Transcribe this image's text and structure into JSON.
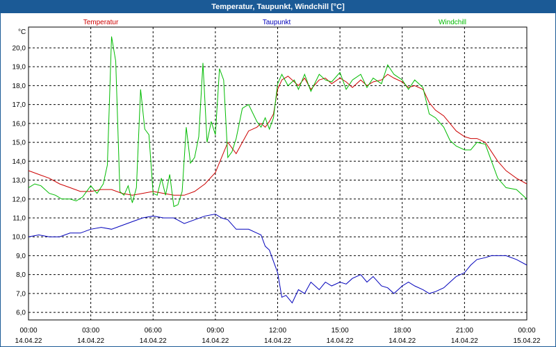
{
  "title": "Temperatur, Taupunkt, Windchill [°C]",
  "colors": {
    "temperatur": "#cc0000",
    "taupunkt": "#0000bb",
    "windchill": "#00bb00",
    "titlebar": "#1b5a96"
  },
  "chart_data": {
    "type": "line",
    "title": "Temperatur, Taupunkt, Windchill [°C]",
    "ylabel": "°C",
    "xlabel": "",
    "ylim": [
      5.6,
      21.1
    ],
    "xlim": [
      0,
      24
    ],
    "yticks": [
      6.0,
      7.0,
      8.0,
      9.0,
      10.0,
      11.0,
      12.0,
      13.0,
      14.0,
      15.0,
      16.0,
      17.0,
      18.0,
      19.0,
      20.0
    ],
    "ytick_labels": [
      "6,0",
      "7,0",
      "8,0",
      "9,0",
      "10,0",
      "11,0",
      "12,0",
      "13,0",
      "14,0",
      "15,0",
      "16,0",
      "17,0",
      "18,0",
      "19,0",
      "20,0"
    ],
    "xticks": [
      {
        "x": 0,
        "time": "00:00",
        "date": "14.04.22"
      },
      {
        "x": 3,
        "time": "03:00",
        "date": "14.04.22"
      },
      {
        "x": 6,
        "time": "06:00",
        "date": "14.04.22"
      },
      {
        "x": 9,
        "time": "09:00",
        "date": "14.04.22"
      },
      {
        "x": 12,
        "time": "12:00",
        "date": "14.04.22"
      },
      {
        "x": 15,
        "time": "15:00",
        "date": "14.04.22"
      },
      {
        "x": 18,
        "time": "18:00",
        "date": "14.04.22"
      },
      {
        "x": 21,
        "time": "21:00",
        "date": "14.04.22"
      },
      {
        "x": 24,
        "time": "00:00",
        "date": "15.04.22"
      }
    ],
    "grid": true,
    "legend_position": "top",
    "series": [
      {
        "name": "Temperatur",
        "key": "temperatur",
        "x": [
          0,
          0.5,
          1,
          1.5,
          2,
          2.5,
          3,
          3.5,
          4,
          4.5,
          5,
          5.5,
          6,
          6.5,
          7,
          7.5,
          8,
          8.5,
          9,
          9.3,
          9.6,
          10,
          10.3,
          10.6,
          11,
          11.2,
          11.4,
          11.6,
          11.8,
          12,
          12.2,
          12.5,
          12.8,
          13,
          13.3,
          13.6,
          14,
          14.3,
          14.6,
          15,
          15.3,
          15.6,
          16,
          16.3,
          16.6,
          17,
          17.3,
          17.6,
          18,
          18.3,
          18.6,
          19,
          19.3,
          19.6,
          20,
          20.3,
          20.6,
          21,
          21.3,
          21.6,
          22,
          22.3,
          22.6,
          23,
          23.5,
          24
        ],
        "y": [
          13.5,
          13.3,
          13.1,
          12.8,
          12.6,
          12.4,
          12.4,
          12.5,
          12.5,
          12.3,
          12.2,
          12.3,
          12.4,
          12.3,
          12.2,
          12.2,
          12.4,
          12.8,
          13.4,
          14.2,
          15.0,
          14.4,
          15.0,
          15.6,
          15.8,
          16.0,
          15.8,
          16.1,
          16.5,
          17.8,
          18.3,
          18.5,
          18.2,
          18.0,
          18.4,
          17.8,
          18.3,
          18.4,
          18.1,
          18.4,
          18.2,
          17.9,
          18.3,
          18.0,
          18.2,
          18.3,
          18.6,
          18.4,
          18.2,
          17.9,
          18.0,
          17.8,
          17.1,
          16.7,
          16.4,
          16.0,
          15.6,
          15.3,
          15.2,
          15.2,
          15.0,
          14.5,
          14.0,
          13.5,
          13.1,
          12.8
        ]
      },
      {
        "name": "Taupunkt",
        "key": "taupunkt",
        "x": [
          0,
          0.5,
          1,
          1.5,
          2,
          2.5,
          3,
          3.5,
          4,
          4.5,
          5,
          5.5,
          6,
          6.5,
          7,
          7.5,
          8,
          8.5,
          9,
          9.3,
          9.6,
          10,
          10.3,
          10.6,
          11,
          11.2,
          11.4,
          11.6,
          11.8,
          12,
          12.2,
          12.4,
          12.7,
          13,
          13.3,
          13.6,
          14,
          14.3,
          14.6,
          15,
          15.3,
          15.6,
          16,
          16.3,
          16.6,
          17,
          17.3,
          17.6,
          18,
          18.3,
          18.6,
          19,
          19.3,
          19.6,
          20,
          20.3,
          20.6,
          21,
          21.3,
          21.6,
          22,
          22.3,
          22.6,
          23,
          23.5,
          24
        ],
        "y": [
          10.0,
          10.1,
          10.0,
          10.0,
          10.2,
          10.2,
          10.4,
          10.5,
          10.4,
          10.6,
          10.8,
          11.0,
          11.1,
          11.0,
          11.0,
          10.7,
          10.9,
          11.1,
          11.2,
          11.0,
          10.9,
          10.4,
          10.4,
          10.4,
          10.2,
          10.1,
          9.5,
          9.3,
          8.7,
          8.1,
          6.8,
          6.9,
          6.5,
          7.2,
          7.0,
          7.6,
          7.2,
          7.6,
          7.4,
          7.6,
          7.5,
          7.8,
          8.0,
          7.6,
          7.9,
          7.4,
          7.3,
          7.0,
          7.4,
          7.6,
          7.4,
          7.2,
          7.0,
          7.1,
          7.3,
          7.6,
          7.9,
          8.1,
          8.5,
          8.8,
          8.9,
          9.0,
          9.0,
          9.0,
          8.8,
          8.5
        ]
      },
      {
        "name": "Windchill",
        "key": "windchill",
        "x": [
          0,
          0.3,
          0.6,
          1,
          1.3,
          1.6,
          2,
          2.3,
          2.6,
          3,
          3.3,
          3.6,
          3.8,
          4,
          4.2,
          4.4,
          4.6,
          4.8,
          5,
          5.2,
          5.4,
          5.6,
          5.8,
          6,
          6.2,
          6.4,
          6.6,
          6.8,
          7,
          7.2,
          7.4,
          7.6,
          7.8,
          8,
          8.2,
          8.4,
          8.6,
          8.8,
          9,
          9.2,
          9.4,
          9.6,
          9.8,
          10,
          10.3,
          10.6,
          11,
          11.2,
          11.4,
          11.6,
          11.8,
          12,
          12.2,
          12.5,
          12.8,
          13,
          13.3,
          13.6,
          14,
          14.3,
          14.6,
          15,
          15.3,
          15.6,
          16,
          16.3,
          16.6,
          17,
          17.3,
          17.6,
          18,
          18.3,
          18.6,
          19,
          19.3,
          19.6,
          20,
          20.3,
          20.6,
          21,
          21.3,
          21.6,
          22,
          22.3,
          22.6,
          23,
          23.5,
          24
        ],
        "y": [
          12.6,
          12.8,
          12.7,
          12.3,
          12.2,
          12.0,
          12.0,
          11.9,
          12.1,
          12.7,
          12.3,
          12.8,
          13.8,
          20.6,
          19.3,
          12.4,
          12.2,
          12.7,
          11.8,
          12.6,
          17.8,
          15.7,
          15.4,
          12.3,
          12.2,
          13.1,
          12.2,
          13.3,
          11.6,
          11.7,
          12.4,
          15.8,
          13.9,
          14.2,
          15.3,
          19.2,
          15.0,
          16.1,
          15.4,
          18.9,
          18.3,
          14.2,
          14.5,
          15.2,
          16.8,
          17.0,
          16.1,
          15.8,
          16.3,
          15.7,
          16.3,
          18.1,
          18.6,
          18.0,
          18.3,
          17.8,
          18.6,
          17.7,
          18.6,
          18.3,
          18.2,
          18.7,
          17.8,
          18.3,
          18.6,
          17.9,
          18.4,
          18.1,
          19.1,
          18.6,
          18.3,
          17.8,
          18.3,
          17.9,
          16.5,
          16.3,
          15.8,
          15.1,
          14.8,
          14.6,
          14.6,
          15.0,
          14.9,
          14.0,
          13.1,
          12.6,
          12.5,
          12.0
        ]
      }
    ]
  }
}
